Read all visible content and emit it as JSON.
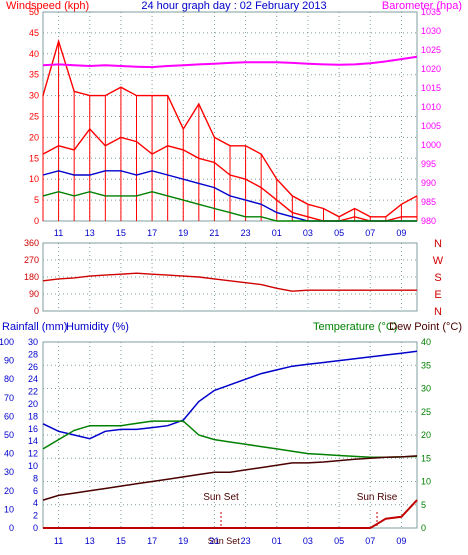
{
  "colors": {
    "wind": "#ff0000",
    "gust": "#ff0000",
    "avg": "#0000cc",
    "low": "#008000",
    "baro": "#ff00ff",
    "dir": "#d00000",
    "humidity": "#0000cc",
    "temperature": "#008000",
    "dew": "#4a0000",
    "rain": "#c00000",
    "axis_blue": "#0000cc",
    "axis_green": "#008000",
    "grid": "#7f9f9f"
  },
  "chart_data": [
    {
      "type": "line",
      "title": "24 hour graph day : 02 February 2013",
      "left_axis_label": "Windspeed (kph)",
      "right_axis_label": "Barometer (hpa)",
      "x_ticks": [
        "11",
        "13",
        "15",
        "17",
        "19",
        "21",
        "23",
        "01",
        "03",
        "05",
        "07",
        "09"
      ],
      "ylim_left": [
        0,
        50
      ],
      "ylim_right": [
        980,
        1035
      ],
      "y_ticks_left": [
        "0",
        "5",
        "10",
        "15",
        "20",
        "25",
        "30",
        "35",
        "40",
        "45",
        "50"
      ],
      "y_ticks_right": [
        "980",
        "985",
        "990",
        "995",
        "1000",
        "1005",
        "1010",
        "1015",
        "1020",
        "1025",
        "1030",
        "1035"
      ],
      "grid": true,
      "x": [
        10,
        11,
        12,
        13,
        14,
        15,
        16,
        17,
        18,
        19,
        20,
        21,
        22,
        23,
        24,
        25,
        26,
        27,
        28,
        29,
        30,
        31,
        32,
        33,
        34
      ],
      "series": [
        {
          "name": "Windspeed",
          "values": [
            16,
            18,
            17,
            22,
            18,
            20,
            19,
            16,
            18,
            17,
            15,
            14,
            11,
            10,
            8,
            5,
            2,
            1,
            0,
            0,
            1,
            0,
            0,
            1,
            1
          ]
        },
        {
          "name": "Gust",
          "values": [
            30,
            43,
            31,
            30,
            30,
            32,
            30,
            30,
            30,
            22,
            28,
            20,
            18,
            18,
            16,
            10,
            6,
            4,
            3,
            1,
            3,
            1,
            1,
            4,
            6
          ]
        },
        {
          "name": "Average",
          "values": [
            11,
            12,
            11,
            11,
            12,
            12,
            11,
            12,
            11,
            10,
            9,
            8,
            6,
            5,
            4,
            2,
            1,
            0,
            0,
            0,
            0,
            0,
            0,
            0,
            0
          ]
        },
        {
          "name": "Low",
          "values": [
            6,
            7,
            6,
            7,
            6,
            6,
            6,
            7,
            6,
            5,
            4,
            3,
            2,
            1,
            1,
            0,
            0,
            0,
            0,
            0,
            0,
            0,
            0,
            0,
            0
          ]
        },
        {
          "name": "Barometer",
          "axis": "right",
          "values": [
            1021,
            1021.2,
            1021,
            1020.8,
            1021,
            1020.8,
            1020.6,
            1020.5,
            1020.8,
            1021,
            1021.2,
            1021.4,
            1021.6,
            1021.8,
            1021.8,
            1021.8,
            1021.6,
            1021.4,
            1021.2,
            1021.1,
            1021.2,
            1021.5,
            1022,
            1022.6,
            1023.2
          ]
        }
      ]
    },
    {
      "type": "line",
      "left_ticks": [
        "360",
        "270",
        "180",
        "90",
        "0"
      ],
      "right_labels": [
        "N",
        "W",
        "S",
        "E",
        "N"
      ],
      "ylim": [
        0,
        360
      ],
      "x": [
        10,
        11,
        12,
        13,
        14,
        15,
        16,
        17,
        18,
        19,
        20,
        21,
        22,
        23,
        24,
        25,
        26,
        27,
        28,
        29,
        30,
        31,
        32,
        33,
        34
      ],
      "series": [
        {
          "name": "Wind direction",
          "values": [
            160,
            170,
            175,
            185,
            190,
            195,
            200,
            195,
            190,
            185,
            180,
            170,
            160,
            150,
            140,
            120,
            105,
            110,
            110,
            110,
            110,
            110,
            110,
            110,
            110
          ]
        }
      ]
    },
    {
      "type": "line",
      "rain_axis_label": "Rainfall (mm)",
      "humidity_axis_label": "Humidity (%)",
      "temp_axis_label": "Temperature (°C)",
      "dew_axis_label": "Dew Point (°C)",
      "rain_ticks": [
        "0",
        "10",
        "20",
        "30",
        "40",
        "50",
        "60",
        "70",
        "80",
        "90",
        "100"
      ],
      "humidity_ticks": [
        "0",
        "2",
        "4",
        "6",
        "8",
        "10",
        "12",
        "14",
        "16",
        "18",
        "20",
        "22",
        "24",
        "26",
        "28",
        "30"
      ],
      "temp_ticks": [
        "0",
        "5",
        "10",
        "15",
        "20",
        "25",
        "30",
        "35",
        "40"
      ],
      "x_ticks": [
        "11",
        "13",
        "15",
        "17",
        "19",
        "Sun Set",
        "21",
        "23",
        "01",
        "03",
        "05",
        "07",
        "09"
      ],
      "sunset_label": "Sun Set",
      "sunrise_label": "Sun Rise",
      "sunset_x": 21.6,
      "sunrise_x": 31.4,
      "ylim_rain": [
        0,
        100
      ],
      "ylim_temp": [
        0,
        40
      ],
      "grid": true,
      "x": [
        10,
        11,
        12,
        13,
        14,
        15,
        16,
        17,
        18,
        19,
        20,
        21,
        22,
        23,
        24,
        25,
        26,
        27,
        28,
        29,
        30,
        31,
        32,
        33,
        34
      ],
      "series": [
        {
          "name": "Humidity",
          "axis": "rain",
          "values": [
            56,
            52,
            50,
            48,
            52,
            53,
            53,
            54,
            55,
            58,
            68,
            74,
            77,
            80,
            83,
            85,
            87,
            88,
            89,
            90,
            91,
            92,
            93,
            94,
            95
          ]
        },
        {
          "name": "Temperature",
          "axis": "temp",
          "values": [
            17,
            19,
            21,
            22,
            22,
            22,
            22.5,
            23,
            23,
            23,
            20,
            19,
            18.5,
            18,
            17.5,
            17,
            16.5,
            16,
            15.8,
            15.6,
            15.4,
            15.2,
            15.2,
            15.3,
            15.4
          ]
        },
        {
          "name": "Dew Point",
          "axis": "temp",
          "values": [
            6,
            7,
            7.5,
            8,
            8.5,
            9,
            9.5,
            10,
            10.5,
            11,
            11.5,
            12,
            12,
            12.5,
            13,
            13.5,
            14,
            14,
            14.2,
            14.5,
            14.8,
            15,
            15.2,
            15.3,
            15.5
          ]
        },
        {
          "name": "Rainfall",
          "axis": "rain",
          "values": [
            0,
            0,
            0,
            0,
            0,
            0,
            0,
            0,
            0,
            0,
            0,
            0,
            0,
            0,
            0,
            0,
            0,
            0,
            0,
            0,
            0,
            0,
            5,
            6,
            15
          ]
        }
      ]
    }
  ]
}
